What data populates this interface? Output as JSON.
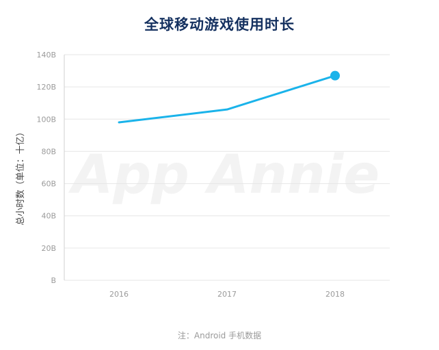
{
  "chart_data": {
    "type": "line",
    "title": "全球移动游戏使用时长",
    "ylabel": "总小时数（单位：十亿）",
    "xlabel": "",
    "categories": [
      "2016",
      "2017",
      "2018"
    ],
    "series": [
      {
        "values": [
          98,
          106,
          127
        ]
      }
    ],
    "ylim": [
      0,
      140
    ],
    "yticks": [
      0,
      20,
      40,
      60,
      80,
      100,
      120,
      140
    ],
    "ytick_labels": [
      "B",
      "20B",
      "40B",
      "60B",
      "80B",
      "100B",
      "120B",
      "140B"
    ],
    "grid": true,
    "line_color": "#1ab3ea",
    "grid_color": "#e6e6e6",
    "watermark": "App Annie"
  },
  "footnote": "注：Android 手机数据"
}
